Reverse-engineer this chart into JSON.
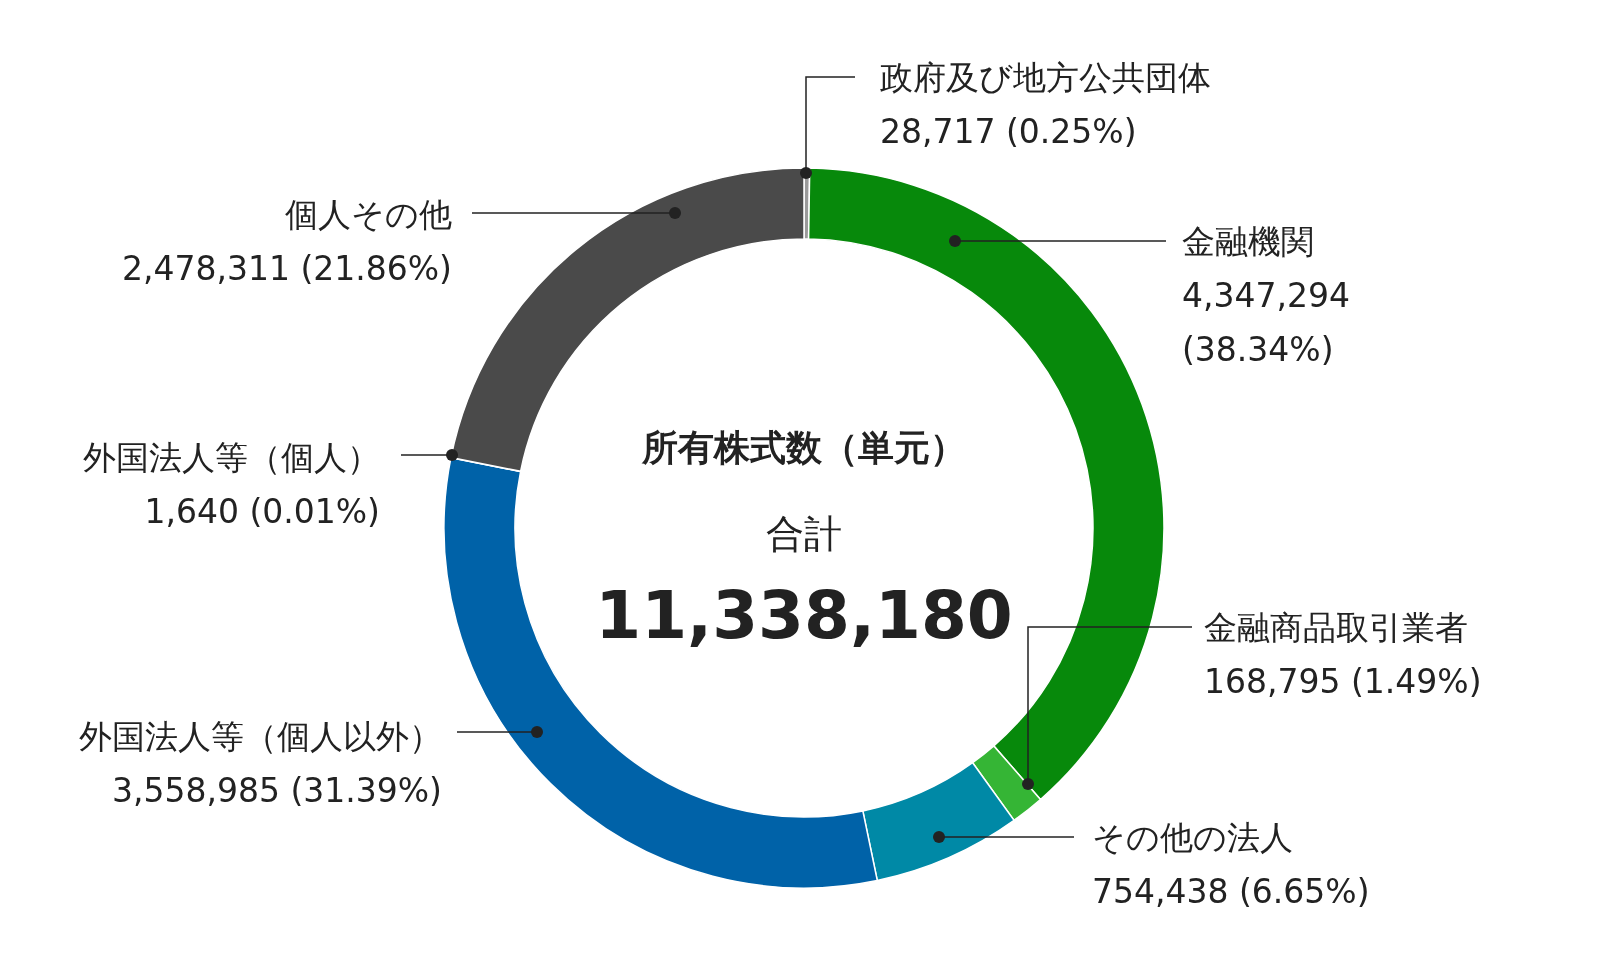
{
  "chart_data": {
    "type": "donut",
    "title": "所有株式数（単元）",
    "categories": [
      "政府及び地方公共団体",
      "金融機関",
      "金融商品取引業者",
      "その他の法人",
      "外国法人等（個人以外）",
      "外国法人等（個人）",
      "個人その他"
    ],
    "values": [
      28717,
      4347294,
      168795,
      754438,
      3558985,
      1640,
      2478311
    ],
    "colors": [
      "#9a9a9a",
      "#07890b",
      "#35b535",
      "#0089a6",
      "#0062a8",
      "#ffffff",
      "#4a4a4a"
    ],
    "value_labels": [
      "28,717 (0.25%)",
      "4,347,294 (38.34%)",
      "168,795 (1.49%)",
      "754,438 (6.65%)",
      "3,558,985 (31.39%)",
      "1,640 (0.01%)",
      "2,478,311 (21.86%)"
    ],
    "annotations": [
      "合計",
      "11,338,180"
    ]
  }
}
